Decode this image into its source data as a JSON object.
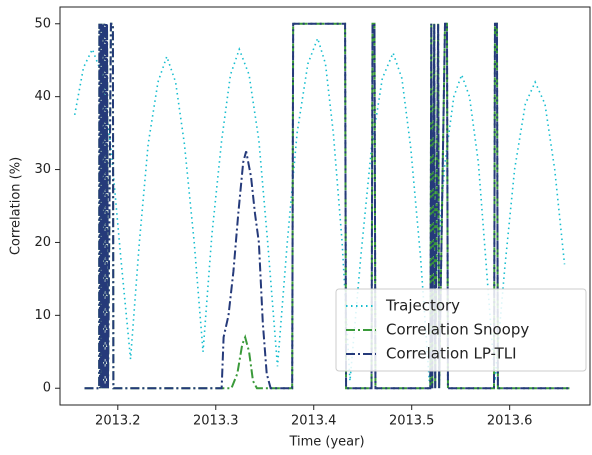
{
  "chart_data": {
    "type": "line",
    "xlabel": "Time (year)",
    "ylabel": "Correlation (%)",
    "xlim": [
      2013.141,
      2013.682
    ],
    "ylim": [
      -2.3,
      52.3
    ],
    "xticks": [
      2013.2,
      2013.3,
      2013.4,
      2013.5,
      2013.6
    ],
    "yticks": [
      0,
      10,
      20,
      30,
      40,
      50
    ],
    "grid": false,
    "legend": "lower right",
    "series": [
      {
        "name": "Trajectory",
        "color": "#17becf",
        "x": [
          2013.156,
          2013.165,
          2013.174,
          2013.184,
          2013.193,
          2013.203,
          2013.213,
          2013.222,
          2013.231,
          2013.241,
          2013.25,
          2013.259,
          2013.268,
          2013.278,
          2013.287,
          2013.296,
          2013.306,
          2013.315,
          2013.324,
          2013.334,
          2013.344,
          2013.353,
          2013.363,
          2013.373,
          2013.383,
          2013.394,
          2013.404,
          2013.412,
          2013.42,
          2013.429,
          2013.437,
          2013.448,
          2013.459,
          2013.47,
          2013.481,
          2013.49,
          2013.499,
          2013.509,
          2013.518,
          2013.526,
          2013.534,
          2013.543,
          2013.551,
          2013.559,
          2013.568,
          2013.576,
          2013.585,
          2013.595,
          2013.605,
          2013.616,
          2013.626,
          2013.636,
          2013.646,
          2013.656
        ],
        "values": [
          37.5,
          44,
          46.5,
          43,
          33,
          18,
          4,
          20,
          33.5,
          42,
          45.5,
          42,
          33.5,
          20,
          5,
          21,
          34,
          43,
          46.5,
          43,
          34,
          20,
          3,
          20,
          35,
          44.5,
          48,
          44.5,
          35,
          20,
          1,
          18,
          33,
          42.5,
          46,
          42.5,
          33,
          18,
          1,
          17,
          31,
          40,
          43,
          40,
          31,
          17,
          1,
          16.5,
          30,
          39,
          42,
          39,
          30,
          17
        ]
      },
      {
        "name": "Correlation Snoopy",
        "color": "#3a9a3a",
        "x": [
          2013.166,
          2013.181,
          2013.1812,
          2013.1818,
          2013.1825,
          2013.183,
          2013.1835,
          2013.184,
          2013.185,
          2013.1855,
          2013.1862,
          2013.187,
          2013.188,
          2013.1885,
          2013.189,
          2013.19,
          2013.193,
          2013.195,
          2013.1955,
          2013.316,
          2013.322,
          2013.327,
          2013.33,
          2013.334,
          2013.338,
          2013.342,
          2013.378,
          2013.379,
          2013.432,
          2013.433,
          2013.459,
          2013.46,
          2013.462,
          2013.463,
          2013.519,
          2013.52,
          2013.521,
          2013.523,
          2013.524,
          2013.527,
          2013.528,
          2013.534,
          2013.536,
          2013.537,
          2013.584,
          2013.585,
          2013.587,
          2013.588,
          2013.661
        ],
        "values": [
          0,
          0,
          50,
          0,
          50,
          0,
          50,
          0,
          50,
          0,
          50,
          0,
          50,
          0,
          50,
          0,
          50,
          50,
          0,
          0,
          2,
          6,
          7,
          5,
          1,
          0,
          0,
          50,
          50,
          0,
          0,
          50,
          50,
          0,
          0,
          50,
          0,
          50,
          0,
          50,
          0,
          50,
          50,
          0,
          0,
          50,
          50,
          0,
          0
        ]
      },
      {
        "name": "Correlation LP-TLI",
        "color": "#253a7a",
        "x": [
          2013.166,
          2013.181,
          2013.1812,
          2013.1818,
          2013.1825,
          2013.183,
          2013.1835,
          2013.184,
          2013.185,
          2013.1855,
          2013.1862,
          2013.187,
          2013.188,
          2013.1885,
          2013.189,
          2013.19,
          2013.193,
          2013.195,
          2013.1955,
          2013.306,
          2013.308,
          2013.313,
          2013.318,
          2013.323,
          2013.328,
          2013.331,
          2013.336,
          2013.34,
          2013.344,
          2013.348,
          2013.352,
          2013.356,
          2013.378,
          2013.379,
          2013.432,
          2013.433,
          2013.459,
          2013.46,
          2013.462,
          2013.463,
          2013.519,
          2013.52,
          2013.521,
          2013.523,
          2013.524,
          2013.527,
          2013.528,
          2013.534,
          2013.536,
          2013.537,
          2013.584,
          2013.585,
          2013.587,
          2013.588,
          2013.661
        ],
        "values": [
          0,
          0,
          50,
          0,
          50,
          0,
          50,
          0,
          50,
          0,
          50,
          0,
          50,
          0,
          50,
          0,
          50,
          50,
          0,
          0,
          7,
          10,
          16,
          24,
          31,
          32.5,
          29,
          24,
          20,
          9,
          2,
          0,
          0,
          50,
          50,
          0,
          0,
          50,
          50,
          0,
          0,
          50,
          0,
          50,
          0,
          50,
          0,
          50,
          50,
          0,
          0,
          50,
          50,
          0,
          0
        ]
      }
    ]
  }
}
